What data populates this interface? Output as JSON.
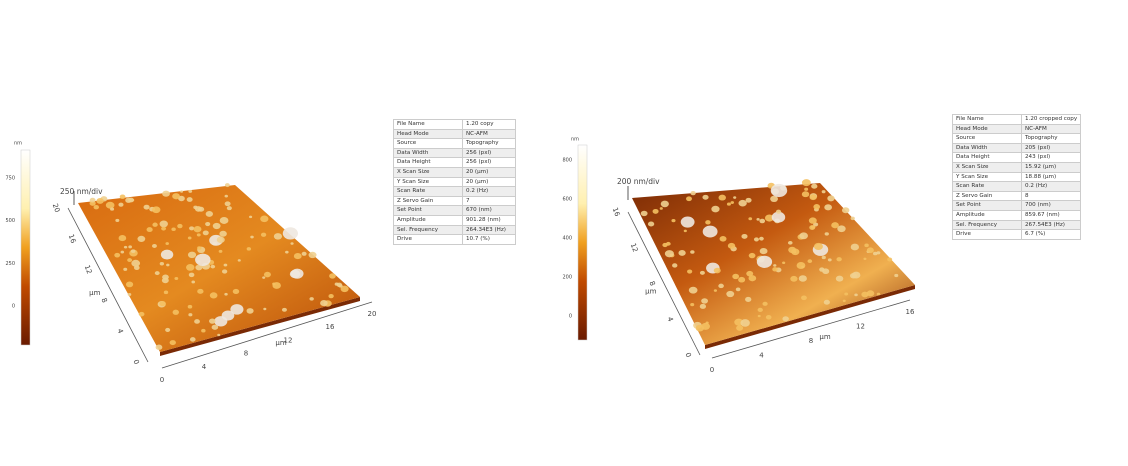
{
  "panels": [
    {
      "colorbar": {
        "unit": "nm",
        "ticks": [
          "750",
          "500",
          "250",
          "0"
        ]
      },
      "z_scale": "250 nm/div",
      "y_axis": {
        "unit": "µm",
        "ticks": [
          "20",
          "16",
          "12",
          "8",
          "4",
          "0"
        ]
      },
      "x_axis": {
        "unit": "µm",
        "ticks": [
          "0",
          "4",
          "8",
          "12",
          "16",
          "20"
        ]
      },
      "table": {
        "rows": [
          [
            "File Name",
            "1.20 copy"
          ],
          [
            "Head Mode",
            "NC-AFM"
          ],
          [
            "Source",
            "Topography"
          ],
          [
            "Data Width",
            "256 (pxl)"
          ],
          [
            "Data Height",
            "256 (pxl)"
          ],
          [
            "X Scan Size",
            "20 (µm)"
          ],
          [
            "Y Scan Size",
            "20 (µm)"
          ],
          [
            "Scan Rate",
            "0.2 (Hz)"
          ],
          [
            "Z Servo Gain",
            "7"
          ],
          [
            "Set Point",
            "670 (nm)"
          ],
          [
            "Amplitude",
            "901.28 (nm)"
          ],
          [
            "Sel. Frequency",
            "264.34E3 (Hz)"
          ],
          [
            "Drive",
            "10.7 (%)"
          ]
        ]
      }
    },
    {
      "colorbar": {
        "unit": "nm",
        "ticks": [
          "800",
          "600",
          "400",
          "200",
          "0"
        ]
      },
      "z_scale": "200 nm/div",
      "y_axis": {
        "unit": "µm",
        "ticks": [
          "16",
          "12",
          "8",
          "4",
          "0"
        ]
      },
      "x_axis": {
        "unit": "µm",
        "ticks": [
          "0",
          "4",
          "8",
          "12",
          "16"
        ]
      },
      "table": {
        "rows": [
          [
            "File Name",
            "1.20 cropped copy"
          ],
          [
            "Head Mode",
            "NC-AFM"
          ],
          [
            "Source",
            "Topography"
          ],
          [
            "Data Width",
            "205 (pxl)"
          ],
          [
            "Data Height",
            "243 (pxl)"
          ],
          [
            "X Scan Size",
            "15.92 (µm)"
          ],
          [
            "Y Scan Size",
            "18.88 (µm)"
          ],
          [
            "Scan Rate",
            "0.2 (Hz)"
          ],
          [
            "Z Servo Gain",
            "8"
          ],
          [
            "Set Point",
            "700 (nm)"
          ],
          [
            "Amplitude",
            "859.67 (nm)"
          ],
          [
            "Sel. Frequency",
            "267.54E3 (Hz)"
          ],
          [
            "Drive",
            "6.7 (%)"
          ]
        ]
      }
    }
  ]
}
